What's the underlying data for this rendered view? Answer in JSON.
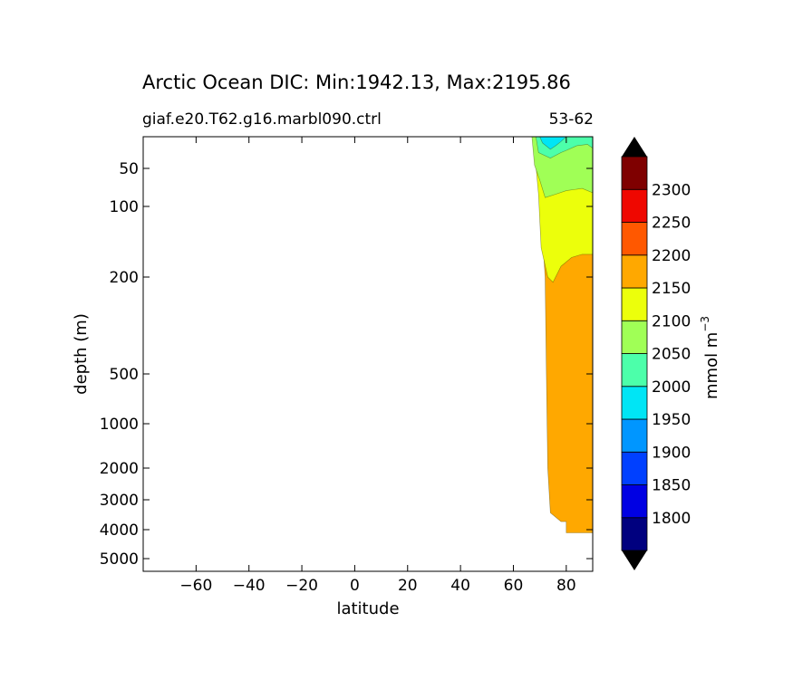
{
  "chart_data": {
    "type": "contour",
    "title": "Arctic Ocean DIC: Min:1942.13, Max:2195.86",
    "subtitle_left": "giaf.e20.T62.g16.marbl090.ctrl",
    "subtitle_right": "53-62",
    "xlabel": "latitude",
    "ylabel": "depth (m)",
    "xlim": [
      -80,
      90
    ],
    "x_ticks": [
      -60,
      -40,
      -20,
      0,
      20,
      40,
      60,
      80
    ],
    "x_tick_labels": [
      "−60",
      "−40",
      "−20",
      "0",
      "20",
      "40",
      "60",
      "80"
    ],
    "y_ticks": [
      50,
      100,
      200,
      500,
      1000,
      2000,
      3000,
      4000,
      5000
    ],
    "y_tick_labels": [
      "50",
      "100",
      "200",
      "500",
      "1000",
      "2000",
      "3000",
      "4000",
      "5000"
    ],
    "colorbar": {
      "label_main": "mmol m",
      "label_exp": "−3",
      "levels": [
        1750,
        1800,
        1850,
        1900,
        1950,
        2000,
        2050,
        2100,
        2150,
        2200,
        2250,
        2300,
        2350
      ],
      "tick_labels": [
        "1800",
        "1850",
        "1900",
        "1950",
        "2000",
        "2050",
        "2100",
        "2150",
        "2200",
        "2250",
        "2300"
      ],
      "colors": [
        "#00007f",
        "#0000e3",
        "#0040ff",
        "#0096ff",
        "#00e5f5",
        "#4cffaa",
        "#a0ff56",
        "#ecff0b",
        "#ffa800",
        "#ff5800",
        "#ef0700",
        "#7f0000"
      ],
      "extend_color": "#000000"
    },
    "fields": [
      {
        "level": "2150-2200",
        "color": "#ffa800",
        "outline": [
          [
            68.5,
            18
          ],
          [
            72,
            200
          ],
          [
            72.5,
            500
          ],
          [
            73,
            2000
          ],
          [
            74,
            3400
          ],
          [
            78,
            3700
          ],
          [
            80,
            3700
          ],
          [
            80,
            4100
          ],
          [
            90,
            4100
          ],
          [
            90,
            18
          ]
        ]
      },
      {
        "level": "2100-2150",
        "color": "#ecff0b",
        "outline": [
          [
            67.5,
            18
          ],
          [
            69.5,
            80
          ],
          [
            70.5,
            150
          ],
          [
            73,
            200
          ],
          [
            75,
            210
          ],
          [
            78,
            180
          ],
          [
            82,
            165
          ],
          [
            86,
            160
          ],
          [
            90,
            160
          ],
          [
            90,
            18
          ]
        ]
      },
      {
        "level": "2050-2100",
        "color": "#a0ff56",
        "outline": [
          [
            67,
            18
          ],
          [
            68,
            45
          ],
          [
            70,
            62
          ],
          [
            72,
            85
          ],
          [
            76,
            80
          ],
          [
            80,
            75
          ],
          [
            86,
            72
          ],
          [
            90,
            78
          ],
          [
            90,
            18
          ]
        ]
      },
      {
        "level": "2000-2050",
        "color": "#4cffaa",
        "outline": [
          [
            68.5,
            18
          ],
          [
            69.5,
            30
          ],
          [
            74,
            36
          ],
          [
            78,
            30
          ],
          [
            80,
            28
          ],
          [
            84,
            24
          ],
          [
            88,
            23
          ],
          [
            90,
            26
          ],
          [
            90,
            18
          ]
        ]
      },
      {
        "level": "1950-2000",
        "color": "#00e5f5",
        "outline": [
          [
            70,
            18
          ],
          [
            71,
            22
          ],
          [
            74,
            27
          ],
          [
            76,
            24
          ],
          [
            78,
            21
          ],
          [
            80,
            18
          ]
        ]
      }
    ]
  }
}
